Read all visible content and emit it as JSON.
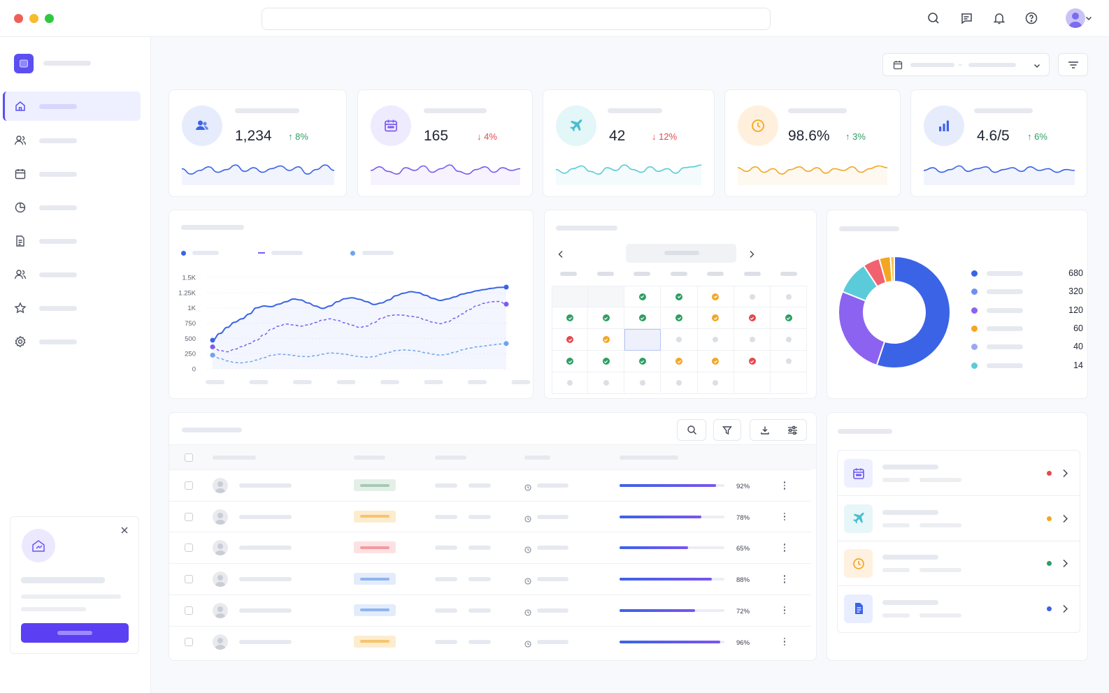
{
  "colors": {
    "accent": "#5b4ff0",
    "positive": "#2e9e63",
    "negative": "#e5484d",
    "blue": "#3b63e6",
    "purple": "#7b5cf0",
    "cyan": "#5bcbd9",
    "orange": "#f5a524",
    "red": "#f26170"
  },
  "topbar": {
    "icons": [
      "search-icon",
      "message-icon",
      "bell-icon",
      "help-icon",
      "avatar",
      "chevron-down-icon"
    ]
  },
  "kpis": [
    {
      "icon": "users-icon",
      "value": "1,234",
      "change": "8%",
      "direction": "up",
      "color": "#3b63e6"
    },
    {
      "icon": "calendar-icon",
      "value": "165",
      "change": "4%",
      "direction": "down",
      "color": "#7b5cf0"
    },
    {
      "icon": "plane-icon",
      "value": "42",
      "change": "12%",
      "direction": "down",
      "color": "#5bcbd9"
    },
    {
      "icon": "clock-icon",
      "value": "98.6%",
      "change": "3%",
      "direction": "up",
      "color": "#f5a524"
    },
    {
      "icon": "bar-chart-icon",
      "value": "4.6/5",
      "change": "6%",
      "direction": "up",
      "color": "#3b63e6"
    }
  ],
  "chart_data": [
    {
      "type": "line",
      "yticks": [
        "0",
        "250",
        "500",
        "750",
        "1K",
        "1.25K",
        "1.5K"
      ],
      "ylim": [
        0,
        1500
      ],
      "x": [
        0,
        1,
        2,
        3,
        4,
        5,
        6,
        7,
        8,
        9,
        10,
        11,
        12,
        13,
        14,
        15,
        16,
        17,
        18,
        19,
        20,
        21,
        22,
        23,
        24,
        25,
        26,
        27,
        28,
        29,
        30,
        31,
        32,
        33,
        34,
        35,
        36,
        37,
        38,
        39,
        40
      ],
      "series": [
        {
          "color": "#3b63e6",
          "style": "solid",
          "values": [
            470,
            580,
            680,
            765,
            820,
            900,
            1000,
            1030,
            1020,
            1060,
            1100,
            1145,
            1130,
            1080,
            1030,
            990,
            1030,
            1100,
            1150,
            1165,
            1140,
            1100,
            1055,
            1080,
            1130,
            1200,
            1240,
            1265,
            1250,
            1205,
            1155,
            1120,
            1145,
            1180,
            1225,
            1250,
            1280,
            1300,
            1320,
            1335,
            1340
          ]
        },
        {
          "color": "#7b5cf0",
          "style": "dashed",
          "values": [
            360,
            300,
            280,
            320,
            365,
            415,
            470,
            560,
            650,
            700,
            735,
            720,
            700,
            720,
            760,
            800,
            820,
            795,
            755,
            715,
            680,
            700,
            760,
            830,
            870,
            885,
            880,
            860,
            845,
            800,
            765,
            740,
            770,
            830,
            900,
            975,
            1035,
            1075,
            1100,
            1105,
            1060
          ]
        },
        {
          "color": "#6fa3ef",
          "style": "dashed",
          "values": [
            225,
            170,
            130,
            105,
            98,
            115,
            145,
            185,
            220,
            240,
            235,
            220,
            205,
            200,
            215,
            240,
            260,
            255,
            240,
            220,
            200,
            190,
            200,
            240,
            270,
            300,
            310,
            305,
            290,
            265,
            240,
            225,
            240,
            275,
            310,
            340,
            360,
            375,
            390,
            405,
            415
          ]
        }
      ]
    },
    {
      "type": "pie",
      "donut": true,
      "values": [
        680,
        320,
        120,
        60,
        40,
        14
      ],
      "colors": [
        "#3b63e6",
        "#8c63f0",
        "#5bcbd9",
        "#f26170",
        "#f5a524",
        "#f6c453"
      ],
      "legend": [
        {
          "color": "#3b63e6",
          "value": "680"
        },
        {
          "color": "#6f8ff0",
          "value": "320"
        },
        {
          "color": "#8c63f0",
          "value": "120"
        },
        {
          "color": "#f5a524",
          "value": "60"
        },
        {
          "color": "#9aa7f2",
          "value": "40"
        },
        {
          "color": "#5bcbd9",
          "value": "14"
        }
      ]
    }
  ],
  "calendar": {
    "rows": [
      [
        "empty",
        "empty",
        "check-green",
        "check-green",
        "check-orange",
        "none",
        "none"
      ],
      [
        "check-green",
        "check-green",
        "check-green",
        "check-green",
        "check-orange",
        "check-red",
        "check-green"
      ],
      [
        "check-red",
        "check-orange",
        "selected",
        "none",
        "none",
        "none",
        "none"
      ],
      [
        "check-green",
        "check-green",
        "check-green",
        "check-orange",
        "check-orange",
        "check-red",
        "none"
      ],
      [
        "none",
        "none",
        "none",
        "none",
        "none",
        "",
        ""
      ]
    ]
  },
  "table": {
    "rows": [
      {
        "badge_bg": "#e4efe8",
        "badge_fg": "#a7c9b4",
        "progress": 0.92,
        "pct": "92%"
      },
      {
        "badge_bg": "#fdeccd",
        "badge_fg": "#f6c46e",
        "progress": 0.78,
        "pct": "78%"
      },
      {
        "badge_bg": "#fde1e2",
        "badge_fg": "#f39aa0",
        "progress": 0.65,
        "pct": "65%"
      },
      {
        "badge_bg": "#e3ecfb",
        "badge_fg": "#8fb3f0",
        "progress": 0.88,
        "pct": "88%"
      },
      {
        "badge_bg": "#e3ecfb",
        "badge_fg": "#8fb3f0",
        "progress": 0.72,
        "pct": "72%"
      },
      {
        "badge_bg": "#fdeccd",
        "badge_fg": "#f6c46e",
        "progress": 0.96,
        "pct": "96%"
      }
    ]
  },
  "tasks": [
    {
      "icon": "calendar-icon",
      "bg": "#eef0ff",
      "color": "#6b55f0",
      "status": "#e5484d"
    },
    {
      "icon": "plane-icon",
      "bg": "#e7f6f8",
      "color": "#47bfd0",
      "status": "#f5a524"
    },
    {
      "icon": "clock-icon",
      "bg": "#fff1e0",
      "color": "#f5a524",
      "status": "#2e9e63"
    },
    {
      "icon": "document-icon",
      "bg": "#e8eeff",
      "color": "#3b63e6",
      "status": "#3b63e6"
    }
  ]
}
